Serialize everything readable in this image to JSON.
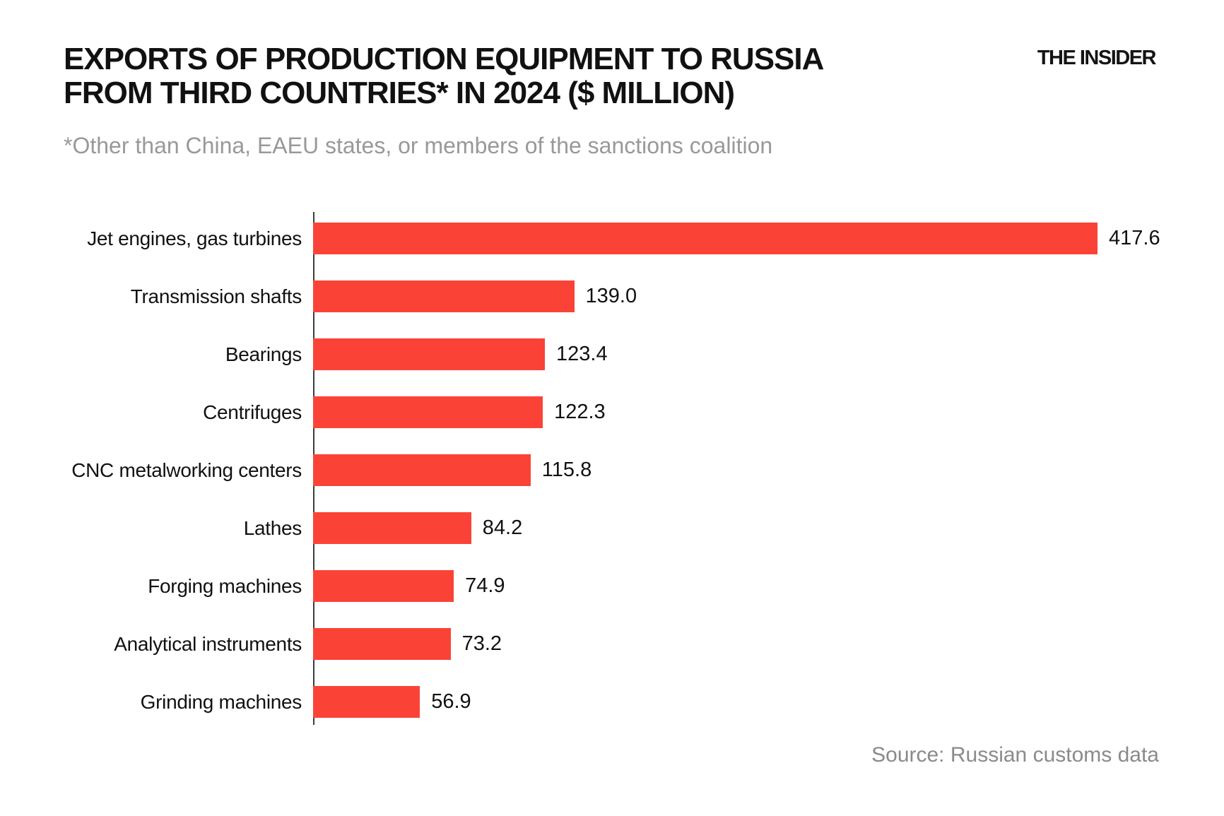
{
  "header": {
    "title_line1": "EXPORTS OF PRODUCTION EQUIPMENT TO RUSSIA",
    "title_line2": "FROM THIRD COUNTRIES* IN 2024 ($ MILLION)",
    "subtitle": "*Other than China, EAEU states, or members of the sanctions coalition",
    "brand": "THE INSIDER"
  },
  "footer": {
    "source": "Source: Russian customs data"
  },
  "colors": {
    "bar": "#FA4336",
    "title": "#111111",
    "subtitle": "#999999",
    "source": "#8A8A8A",
    "axis": "#3D3D3D"
  },
  "chart_data": {
    "type": "bar",
    "orientation": "horizontal",
    "title": "EXPORTS OF PRODUCTION EQUIPMENT TO RUSSIA FROM THIRD COUNTRIES* IN 2024 ($ MILLION)",
    "subtitle": "*Other than China, EAEU states, or members of the sanctions coalition",
    "unit": "$ million",
    "categories": [
      "Jet engines, gas turbines",
      "Transmission shafts",
      "Bearings",
      "Centrifuges",
      "CNC metalworking centers",
      "Lathes",
      "Forging machines",
      "Analytical instruments",
      "Grinding machines"
    ],
    "values": [
      417.6,
      139.0,
      123.4,
      122.3,
      115.8,
      84.2,
      74.9,
      73.2,
      56.9
    ],
    "display_values": [
      "417.6",
      "139.0",
      "123.4",
      "122.3",
      "115.8",
      "84.2",
      "74.9",
      "73.2",
      "56.9"
    ],
    "xlim": [
      0,
      440
    ],
    "grid": false,
    "legend": false,
    "value_labels": "end-of-bar",
    "source": "Source: Russian customs data"
  }
}
